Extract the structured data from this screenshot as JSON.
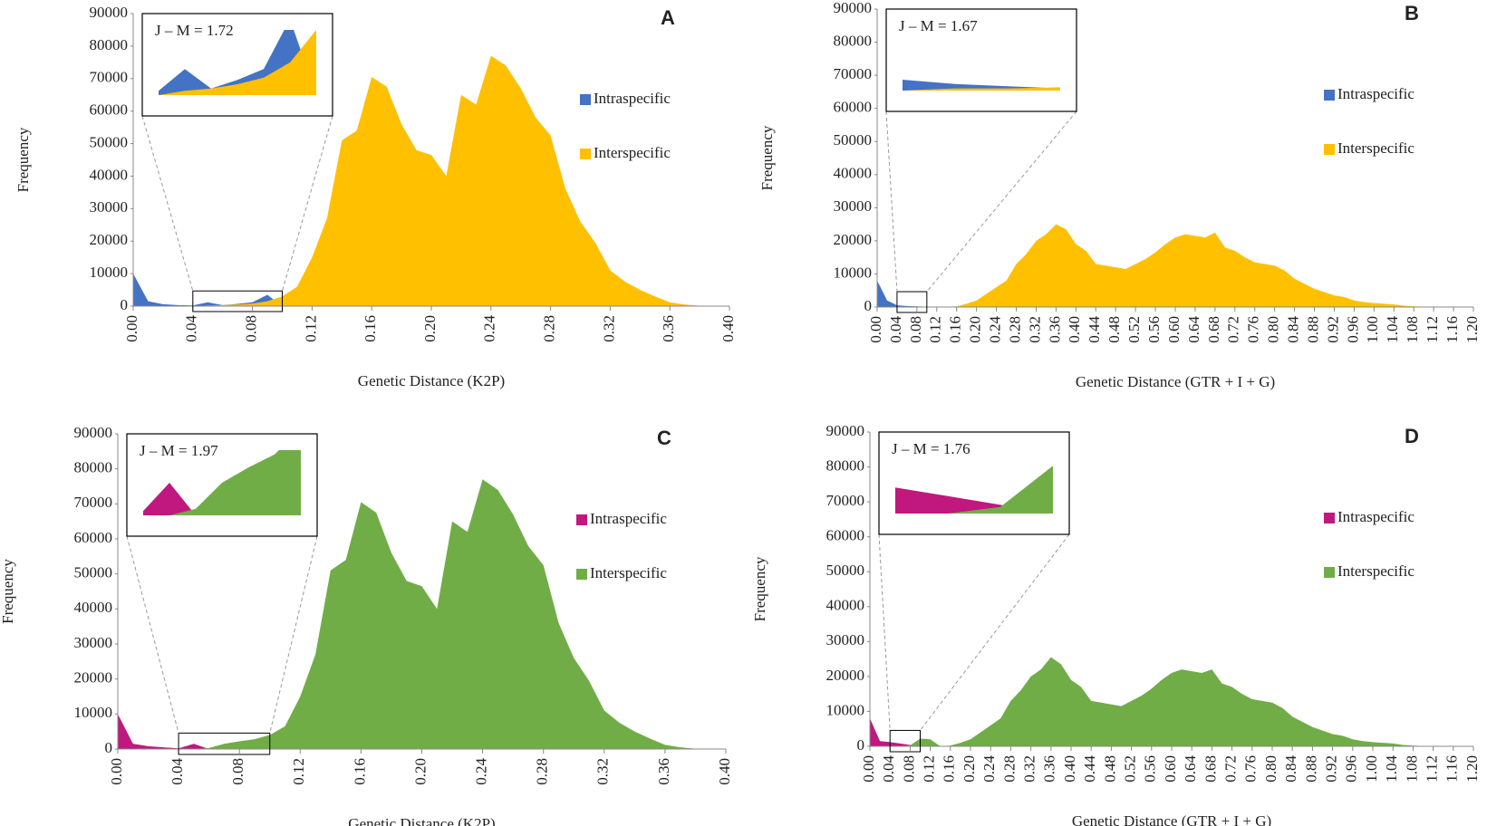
{
  "chart_data": [
    {
      "type": "area",
      "panel_label": "A",
      "inset_label": "J – M = 1.72",
      "x_label": "Genetic Distance (K2P)",
      "y_label": "Frequency",
      "legend": "right",
      "xlim": [
        0,
        0.4
      ],
      "ylim": [
        0,
        90000
      ],
      "xticks": [
        {
          "value": 0,
          "label": "0.00"
        },
        0.04,
        0.08,
        0.12,
        0.16,
        {
          "value": 0.2,
          "label": "0.20"
        },
        0.24,
        0.28,
        0.32,
        0.36,
        {
          "value": 0.4,
          "label": "0.40"
        }
      ],
      "yticks": [
        0,
        10000,
        20000,
        30000,
        40000,
        50000,
        60000,
        70000,
        80000,
        90000
      ],
      "zoom_xlim": [
        0.04,
        0.1
      ],
      "zoom_ylim": [
        0,
        3000
      ],
      "x": [
        0,
        0.01,
        0.02,
        0.03,
        0.04,
        0.05,
        0.06,
        0.07,
        0.08,
        0.09,
        0.1,
        0.11,
        0.12,
        0.13,
        0.14,
        0.15,
        0.16,
        0.17,
        0.18,
        0.19,
        0.2,
        0.21,
        0.22,
        0.23,
        0.24,
        0.25,
        0.26,
        0.27,
        0.28,
        0.29,
        0.3,
        0.31,
        0.32,
        0.33,
        0.34,
        0.35,
        0.36,
        0.37,
        0.38,
        0.39,
        0.4
      ],
      "series": [
        {
          "name": "Intraspecific",
          "color": "#4472c4",
          "values": [
            10000,
            1500,
            600,
            300,
            200,
            1200,
            300,
            700,
            1200,
            3500,
            0,
            0,
            0,
            0,
            0,
            0,
            0,
            0,
            0,
            0,
            0,
            0,
            0,
            0,
            0,
            0,
            0,
            0,
            0,
            0,
            0,
            0,
            0,
            0,
            0,
            0,
            0,
            0,
            0,
            0,
            0
          ]
        },
        {
          "name": "Interspecific",
          "color": "#ffc000",
          "values": [
            0,
            0,
            0,
            0,
            0,
            200,
            300,
            500,
            800,
            1500,
            3000,
            6000,
            15000,
            27000,
            51000,
            54000,
            70500,
            67500,
            56000,
            48000,
            46500,
            40000,
            65000,
            62000,
            77000,
            74000,
            67000,
            58000,
            52500,
            36000,
            26000,
            19500,
            11000,
            7500,
            5000,
            3000,
            1200,
            500,
            100,
            0,
            0
          ]
        }
      ]
    },
    {
      "type": "area",
      "panel_label": "B",
      "inset_label": "J – M = 1.67",
      "x_label": "Genetic Distance (GTR + I + G)",
      "y_label": "Frequency",
      "legend": "right",
      "xlim": [
        0,
        1.2
      ],
      "ylim": [
        0,
        90000
      ],
      "xticks": [
        {
          "value": 0,
          "label": "0.00"
        },
        0.04,
        0.08,
        0.12,
        0.16,
        {
          "value": 0.2,
          "label": "0.20"
        },
        0.24,
        0.28,
        0.32,
        0.36,
        {
          "value": 0.4,
          "label": "0.40"
        },
        0.44,
        0.48,
        0.52,
        0.56,
        {
          "value": 0.6,
          "label": "0.60"
        },
        0.64,
        0.68,
        0.72,
        0.76,
        {
          "value": 0.8,
          "label": "0.80"
        },
        0.84,
        0.88,
        0.92,
        0.96,
        {
          "value": 1,
          "label": "1.00"
        },
        1.04,
        1.08,
        1.12,
        1.16,
        {
          "value": 1.2,
          "label": "1.20"
        }
      ],
      "yticks": [
        0,
        10000,
        20000,
        30000,
        40000,
        50000,
        60000,
        70000,
        80000,
        90000
      ],
      "zoom_xlim": [
        0.04,
        0.1
      ],
      "zoom_ylim": [
        0,
        3000
      ],
      "x": [
        0,
        0.02,
        0.04,
        0.06,
        0.08,
        0.1,
        0.12,
        0.14,
        0.16,
        0.18,
        0.2,
        0.22,
        0.24,
        0.26,
        0.28,
        0.3,
        0.32,
        0.34,
        0.36,
        0.38,
        0.4,
        0.42,
        0.44,
        0.46,
        0.48,
        0.5,
        0.52,
        0.54,
        0.56,
        0.58,
        0.6,
        0.62,
        0.64,
        0.66,
        0.68,
        0.7,
        0.72,
        0.74,
        0.76,
        0.78,
        0.8,
        0.82,
        0.84,
        0.86,
        0.88,
        0.9,
        0.92,
        0.94,
        0.96,
        0.98,
        1,
        1.02,
        1.04,
        1.06,
        1.08,
        1.1,
        1.12,
        1.14,
        1.16,
        1.18,
        1.2
      ],
      "series": [
        {
          "name": "Intraspecific",
          "color": "#4472c4",
          "values": [
            8000,
            2000,
            500,
            300,
            200,
            100,
            0,
            0,
            0,
            0,
            0,
            0,
            0,
            0,
            0,
            0,
            0,
            0,
            0,
            0,
            0,
            0,
            0,
            0,
            0,
            0,
            0,
            0,
            0,
            0,
            0,
            0,
            0,
            0,
            0,
            0,
            0,
            0,
            0,
            0,
            0,
            0,
            0,
            0,
            0,
            0,
            0,
            0,
            0,
            0,
            0,
            0,
            0,
            0,
            0,
            0,
            0,
            0,
            0,
            0,
            0
          ]
        },
        {
          "name": "Interspecific",
          "color": "#ffc000",
          "values": [
            0,
            0,
            0,
            100,
            100,
            150,
            0,
            0,
            200,
            1000,
            2000,
            4000,
            6000,
            8000,
            13000,
            16000,
            20000,
            22000,
            25000,
            23500,
            19000,
            17000,
            13000,
            12500,
            12000,
            11500,
            13000,
            14500,
            16500,
            19000,
            21000,
            22000,
            21500,
            21000,
            22500,
            18000,
            17000,
            15000,
            13500,
            13000,
            12500,
            11000,
            8500,
            7000,
            5500,
            4500,
            3500,
            3000,
            2000,
            1500,
            1200,
            1000,
            800,
            400,
            200,
            100,
            0,
            0,
            0,
            0,
            0
          ]
        }
      ]
    },
    {
      "type": "area",
      "panel_label": "C",
      "inset_label": "J – M = 1.97",
      "x_label": "Genetic Distance (K2P)",
      "y_label": "Frequency",
      "legend": "right",
      "xlim": [
        0,
        0.4
      ],
      "ylim": [
        0,
        90000
      ],
      "xticks": [
        {
          "value": 0,
          "label": "0.00"
        },
        0.04,
        0.08,
        0.12,
        0.16,
        {
          "value": 0.2,
          "label": "0.20"
        },
        0.24,
        0.28,
        0.32,
        0.36,
        {
          "value": 0.4,
          "label": "0.40"
        }
      ],
      "yticks": [
        0,
        10000,
        20000,
        30000,
        40000,
        50000,
        60000,
        70000,
        80000,
        90000
      ],
      "zoom_xlim": [
        0.04,
        0.1
      ],
      "zoom_ylim": [
        0,
        3000
      ],
      "x": [
        0,
        0.01,
        0.02,
        0.03,
        0.04,
        0.05,
        0.06,
        0.07,
        0.08,
        0.09,
        0.1,
        0.11,
        0.12,
        0.13,
        0.14,
        0.15,
        0.16,
        0.17,
        0.18,
        0.19,
        0.2,
        0.21,
        0.22,
        0.23,
        0.24,
        0.25,
        0.26,
        0.27,
        0.28,
        0.29,
        0.3,
        0.31,
        0.32,
        0.33,
        0.34,
        0.35,
        0.36,
        0.37,
        0.38,
        0.39,
        0.4
      ],
      "series": [
        {
          "name": "Intraspecific",
          "color": "#c0187f",
          "values": [
            10000,
            1500,
            800,
            500,
            200,
            1500,
            0,
            0,
            0,
            0,
            0,
            0,
            0,
            0,
            0,
            0,
            0,
            0,
            0,
            0,
            0,
            0,
            0,
            0,
            0,
            0,
            0,
            0,
            0,
            0,
            0,
            0,
            0,
            0,
            0,
            0,
            0,
            0,
            0,
            0,
            0
          ]
        },
        {
          "name": "Interspecific",
          "color": "#70ad47",
          "values": [
            0,
            0,
            0,
            0,
            0,
            0,
            300,
            1500,
            2200,
            2800,
            4000,
            6500,
            15000,
            27000,
            51000,
            54000,
            70500,
            67500,
            56000,
            48000,
            46500,
            40000,
            65000,
            62000,
            77000,
            74000,
            67000,
            58000,
            52500,
            36000,
            26000,
            19500,
            11000,
            7500,
            5000,
            3000,
            1200,
            500,
            100,
            0,
            0
          ]
        }
      ]
    },
    {
      "type": "area",
      "panel_label": "D",
      "inset_label": "J – M = 1.76",
      "x_label": "Genetic Distance (GTR + I + G)",
      "y_label": "Frequency",
      "legend": "right",
      "xlim": [
        0,
        1.2
      ],
      "ylim": [
        0,
        90000
      ],
      "xticks": [
        {
          "value": 0,
          "label": "0.00"
        },
        0.04,
        0.08,
        0.12,
        0.16,
        {
          "value": 0.2,
          "label": "0.20"
        },
        0.24,
        0.28,
        0.32,
        0.36,
        {
          "value": 0.4,
          "label": "0.40"
        },
        0.44,
        0.48,
        0.52,
        0.56,
        {
          "value": 0.6,
          "label": "0.60"
        },
        0.64,
        0.68,
        0.72,
        0.76,
        {
          "value": 0.8,
          "label": "0.80"
        },
        0.84,
        0.88,
        0.92,
        0.96,
        {
          "value": 1,
          "label": "1.00"
        },
        1.04,
        1.08,
        1.12,
        1.16,
        {
          "value": 1.2,
          "label": "1.20"
        }
      ],
      "yticks": [
        0,
        10000,
        20000,
        30000,
        40000,
        50000,
        60000,
        70000,
        80000,
        90000
      ],
      "zoom_xlim": [
        0.04,
        0.1
      ],
      "zoom_ylim": [
        0,
        3000
      ],
      "x": [
        0,
        0.02,
        0.04,
        0.06,
        0.08,
        0.1,
        0.12,
        0.14,
        0.16,
        0.18,
        0.2,
        0.22,
        0.24,
        0.26,
        0.28,
        0.3,
        0.32,
        0.34,
        0.36,
        0.38,
        0.4,
        0.42,
        0.44,
        0.46,
        0.48,
        0.5,
        0.52,
        0.54,
        0.56,
        0.58,
        0.6,
        0.62,
        0.64,
        0.66,
        0.68,
        0.7,
        0.72,
        0.74,
        0.76,
        0.78,
        0.8,
        0.82,
        0.84,
        0.86,
        0.88,
        0.9,
        0.92,
        0.94,
        0.96,
        0.98,
        1,
        1.02,
        1.04,
        1.06,
        1.08,
        1.1,
        1.12,
        1.14,
        1.16,
        1.18,
        1.2
      ],
      "series": [
        {
          "name": "Intraspecific",
          "color": "#c0187f",
          "values": [
            8000,
            1500,
            1200,
            800,
            400,
            0,
            0,
            0,
            0,
            0,
            0,
            0,
            0,
            0,
            0,
            0,
            0,
            0,
            0,
            0,
            0,
            0,
            0,
            0,
            0,
            0,
            0,
            0,
            0,
            0,
            0,
            0,
            0,
            0,
            0,
            0,
            0,
            0,
            0,
            0,
            0,
            0,
            0,
            0,
            0,
            0,
            0,
            0,
            0,
            0,
            0,
            0,
            0,
            0,
            0,
            0,
            0,
            0,
            0,
            0,
            0
          ]
        },
        {
          "name": "Interspecific",
          "color": "#70ad47",
          "values": [
            0,
            0,
            0,
            0,
            300,
            2200,
            2000,
            0,
            200,
            1000,
            2000,
            4000,
            6000,
            8000,
            13000,
            16000,
            20000,
            22000,
            25500,
            23500,
            19000,
            17000,
            13000,
            12500,
            12000,
            11500,
            13000,
            14500,
            16500,
            19000,
            21000,
            22000,
            21500,
            21000,
            22000,
            18000,
            17000,
            15000,
            13500,
            13000,
            12500,
            11000,
            8500,
            7000,
            5500,
            4500,
            3500,
            3000,
            2000,
            1500,
            1200,
            1000,
            800,
            400,
            200,
            100,
            0,
            0,
            0,
            0,
            0
          ]
        }
      ]
    }
  ]
}
